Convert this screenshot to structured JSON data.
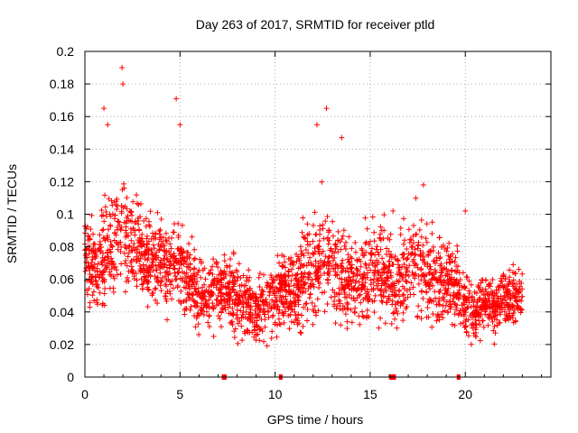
{
  "chart_data": {
    "type": "scatter",
    "title": "Day 263 of 2017, SRMTID for receiver ptld",
    "xlabel": "GPS time / hours",
    "ylabel": "SRMTID / TECUs",
    "xlim": [
      0,
      24.5
    ],
    "ylim": [
      0,
      0.2
    ],
    "xticks": [
      0,
      5,
      10,
      15,
      20
    ],
    "xtick_labels": [
      "0",
      "5",
      "10",
      "15",
      "20"
    ],
    "yticks": [
      0,
      0.02,
      0.04,
      0.06,
      0.08,
      0.1,
      0.12,
      0.14,
      0.16,
      0.18,
      0.2
    ],
    "ytick_labels": [
      "0",
      "0.02",
      "0.04",
      "0.06",
      "0.08",
      "0.1",
      "0.12",
      "0.14",
      "0.16",
      "0.18",
      "0.2"
    ],
    "grid": true,
    "color": "#ff0000",
    "marker": "plus",
    "x_range_covered": [
      0,
      23
    ],
    "envelope": {
      "x": [
        0,
        0.5,
        1,
        1.5,
        2,
        2.5,
        3,
        3.5,
        4,
        4.5,
        5,
        5.5,
        6,
        6.5,
        7,
        7.5,
        8,
        8.5,
        9,
        9.5,
        10,
        10.5,
        11,
        11.5,
        12,
        12.5,
        13,
        13.5,
        14,
        14.5,
        15,
        15.5,
        16,
        16.5,
        17,
        17.5,
        18,
        18.5,
        19,
        19.5,
        20,
        20.5,
        21,
        21.5,
        22,
        22.5,
        23
      ],
      "mean": [
        0.08,
        0.065,
        0.07,
        0.085,
        0.09,
        0.085,
        0.075,
        0.07,
        0.07,
        0.065,
        0.075,
        0.06,
        0.05,
        0.05,
        0.055,
        0.055,
        0.05,
        0.045,
        0.04,
        0.045,
        0.05,
        0.055,
        0.05,
        0.06,
        0.07,
        0.075,
        0.07,
        0.065,
        0.06,
        0.06,
        0.065,
        0.065,
        0.06,
        0.055,
        0.07,
        0.07,
        0.065,
        0.055,
        0.06,
        0.055,
        0.045,
        0.04,
        0.045,
        0.045,
        0.05,
        0.05,
        0.05
      ],
      "spread": [
        0.025,
        0.02,
        0.03,
        0.03,
        0.03,
        0.025,
        0.025,
        0.022,
        0.022,
        0.022,
        0.025,
        0.02,
        0.018,
        0.02,
        0.02,
        0.02,
        0.02,
        0.02,
        0.02,
        0.02,
        0.02,
        0.02,
        0.022,
        0.025,
        0.03,
        0.03,
        0.03,
        0.025,
        0.022,
        0.022,
        0.025,
        0.025,
        0.022,
        0.02,
        0.025,
        0.025,
        0.025,
        0.02,
        0.02,
        0.02,
        0.018,
        0.015,
        0.015,
        0.015,
        0.015,
        0.015,
        0.015
      ]
    },
    "highlight_points": [
      {
        "x": 1.0,
        "y": 0.165
      },
      {
        "x": 1.2,
        "y": 0.155
      },
      {
        "x": 1.95,
        "y": 0.19
      },
      {
        "x": 2.0,
        "y": 0.18
      },
      {
        "x": 4.8,
        "y": 0.171
      },
      {
        "x": 5.0,
        "y": 0.155
      },
      {
        "x": 12.2,
        "y": 0.155
      },
      {
        "x": 12.7,
        "y": 0.165
      },
      {
        "x": 13.5,
        "y": 0.147
      },
      {
        "x": 16.2,
        "y": 0.102
      },
      {
        "x": 17.8,
        "y": 0.118
      },
      {
        "x": 20.0,
        "y": 0.102
      }
    ],
    "zero_markers": [
      {
        "x_start": 7.2,
        "x_end": 7.45
      },
      {
        "x_start": 10.2,
        "x_end": 10.35
      },
      {
        "x_start": 16.0,
        "x_end": 16.35
      },
      {
        "x_start": 19.55,
        "x_end": 19.65
      }
    ]
  }
}
